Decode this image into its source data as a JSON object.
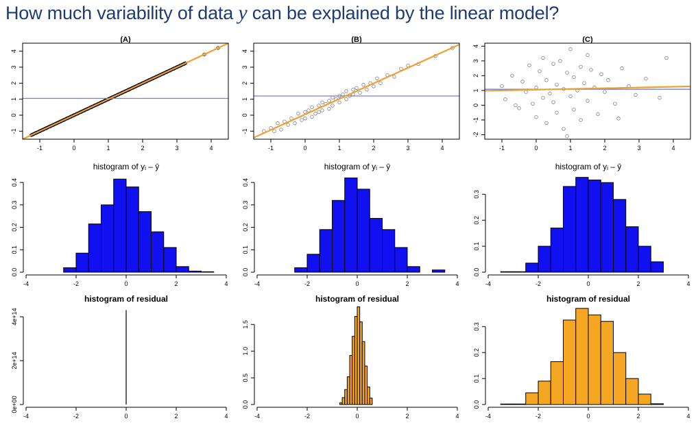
{
  "title": {
    "prefix": "How much variability of data ",
    "variable": "y",
    "suffix": " can be explained by the linear model?"
  },
  "colors": {
    "title": "#1f3b73",
    "fit_line": "#f0a030",
    "mean_line": "#6f7fe6",
    "blue_bars": "#1010f0",
    "orange_bars": "#f5a623",
    "points": "#000000"
  },
  "chart_data": [
    {
      "type": "scatter",
      "panel": "A",
      "title": "(A)",
      "xlim": [
        -1.5,
        4.5
      ],
      "ylim": [
        -1.5,
        4.5
      ],
      "xticks": [
        "-1",
        "0",
        "1",
        "2",
        "3",
        "4"
      ],
      "yticks": [
        "-1",
        "0",
        "1",
        "2",
        "3",
        "4"
      ],
      "mean_y": 1.05,
      "fit_line": {
        "intercept": 0,
        "slope": 1
      },
      "points": {
        "x": [
          -1.2,
          -1.1,
          -1.0,
          -0.9,
          -0.8,
          -0.7,
          -0.6,
          -0.5,
          -0.4,
          -0.3,
          -0.2,
          -0.1,
          0.0,
          0.1,
          0.2,
          0.3,
          0.4,
          0.5,
          0.6,
          0.7,
          0.8,
          0.9,
          1.0,
          1.1,
          1.2,
          1.3,
          1.4,
          1.5,
          1.6,
          1.7,
          1.8,
          1.9,
          2.0,
          2.1,
          2.2,
          2.3,
          2.4,
          2.5,
          2.6,
          2.7,
          2.8,
          2.9,
          3.0,
          3.1,
          3.2,
          3.8,
          4.2
        ],
        "y": [
          -1.2,
          -1.1,
          -1.0,
          -0.9,
          -0.8,
          -0.7,
          -0.6,
          -0.5,
          -0.4,
          -0.3,
          -0.2,
          -0.1,
          0.0,
          0.1,
          0.2,
          0.3,
          0.4,
          0.5,
          0.6,
          0.7,
          0.8,
          0.9,
          1.0,
          1.1,
          1.2,
          1.3,
          1.4,
          1.5,
          1.6,
          1.7,
          1.8,
          1.9,
          2.0,
          2.1,
          2.2,
          2.3,
          2.4,
          2.5,
          2.6,
          2.7,
          2.8,
          2.9,
          3.0,
          3.1,
          3.2,
          3.8,
          4.2
        ]
      }
    },
    {
      "type": "scatter",
      "panel": "B",
      "title": "(B)",
      "xlim": [
        -1.5,
        4.5
      ],
      "ylim": [
        -1.5,
        4.5
      ],
      "xticks": [
        "-1",
        "0",
        "1",
        "2",
        "3",
        "4"
      ],
      "yticks": [
        "-1",
        "0",
        "1",
        "2",
        "3",
        "4"
      ],
      "mean_y": 1.2,
      "fit_line": {
        "intercept": 0.05,
        "slope": 0.97
      },
      "points": {
        "x": [
          -1.2,
          -1.0,
          -0.9,
          -0.8,
          -0.7,
          -0.6,
          -0.5,
          -0.4,
          -0.3,
          -0.2,
          -0.1,
          0.0,
          0.0,
          0.1,
          0.2,
          0.2,
          0.3,
          0.4,
          0.4,
          0.5,
          0.5,
          0.6,
          0.7,
          0.7,
          0.8,
          0.8,
          0.9,
          1.0,
          1.0,
          1.1,
          1.2,
          1.2,
          1.3,
          1.4,
          1.4,
          1.5,
          1.6,
          1.7,
          1.8,
          1.9,
          2.0,
          2.1,
          2.2,
          2.4,
          2.6,
          2.8,
          3.0,
          3.3,
          3.8,
          4.3
        ],
        "y": [
          -1.0,
          -0.8,
          -1.0,
          -0.5,
          -0.9,
          -0.4,
          -0.6,
          -0.2,
          -0.5,
          0.1,
          -0.3,
          0.2,
          -0.2,
          0.3,
          -0.1,
          0.5,
          0.1,
          0.6,
          0.2,
          0.8,
          0.3,
          0.7,
          0.9,
          0.4,
          1.1,
          0.6,
          1.0,
          1.2,
          0.8,
          1.3,
          1.0,
          1.5,
          1.2,
          1.6,
          1.3,
          1.7,
          1.4,
          1.9,
          1.6,
          2.0,
          1.8,
          2.3,
          2.0,
          2.5,
          2.4,
          2.9,
          3.1,
          3.2,
          3.7,
          4.2
        ]
      }
    },
    {
      "type": "scatter",
      "panel": "C",
      "title": "(C)",
      "xlim": [
        -1.5,
        4.5
      ],
      "ylim": [
        -2.3,
        4.2
      ],
      "xticks": [
        "-1",
        "0",
        "1",
        "2",
        "3",
        "4"
      ],
      "yticks": [
        "-2",
        "-1",
        "0",
        "1",
        "2",
        "3",
        "4"
      ],
      "mean_y": 1.08,
      "fit_line": {
        "intercept": 1.05,
        "slope": 0.05
      },
      "points": {
        "x": [
          -1.0,
          -0.9,
          -0.7,
          -0.5,
          -0.4,
          -0.3,
          -0.2,
          -0.1,
          0.0,
          0.0,
          0.1,
          0.2,
          0.2,
          0.3,
          0.3,
          0.4,
          0.5,
          0.5,
          0.6,
          0.6,
          0.7,
          0.8,
          0.8,
          0.9,
          1.0,
          1.0,
          1.1,
          1.1,
          1.2,
          1.3,
          1.3,
          1.4,
          1.5,
          1.6,
          1.7,
          1.8,
          1.9,
          2.0,
          2.1,
          2.3,
          2.5,
          2.7,
          2.9,
          3.2,
          3.6,
          3.8,
          0.9,
          1.5,
          -0.6,
          2.4
        ],
        "y": [
          1.3,
          0.4,
          2.0,
          -0.2,
          1.6,
          0.9,
          2.7,
          0.1,
          1.2,
          -0.8,
          2.3,
          0.5,
          3.2,
          1.7,
          -1.2,
          0.8,
          2.8,
          0.2,
          1.4,
          -0.5,
          3.0,
          1.1,
          -1.6,
          2.2,
          0.6,
          3.8,
          1.9,
          -0.3,
          1.0,
          2.6,
          -1.0,
          1.5,
          0.3,
          2.4,
          1.2,
          -0.6,
          2.1,
          0.9,
          1.7,
          0.1,
          2.5,
          1.3,
          0.7,
          1.8,
          0.5,
          3.2,
          -2.1,
          3.4,
          0.0,
          -0.9
        ]
      }
    },
    {
      "type": "histogram",
      "panel": "A-response",
      "title": "histogram of yᵢ – ȳ",
      "bar_color": "blue_bars",
      "xlim": [
        -4,
        4
      ],
      "ylim": [
        0,
        0.44
      ],
      "xticks": [
        "-4",
        "-2",
        "0",
        "2",
        "4"
      ],
      "yticks": [
        "0.0",
        "0.1",
        "0.2",
        "0.3",
        "0.4"
      ],
      "bin_edges": [
        -2.5,
        -2.0,
        -1.5,
        -1.0,
        -0.5,
        0.0,
        0.5,
        1.0,
        1.5,
        2.0,
        2.5,
        3.0,
        3.5
      ],
      "densities": [
        0.02,
        0.085,
        0.215,
        0.3,
        0.415,
        0.38,
        0.27,
        0.18,
        0.11,
        0.025,
        0.005,
        0.002
      ]
    },
    {
      "type": "histogram",
      "panel": "B-response",
      "title": "histogram of yᵢ – ȳ",
      "bar_color": "blue_bars",
      "xlim": [
        -4,
        4
      ],
      "ylim": [
        0,
        0.44
      ],
      "xticks": [
        "-4",
        "-2",
        "0",
        "2",
        "4"
      ],
      "yticks": [
        "0.0",
        "0.1",
        "0.2",
        "0.3",
        "0.4"
      ],
      "bin_edges": [
        -2.5,
        -2.0,
        -1.5,
        -1.0,
        -0.5,
        0.0,
        0.5,
        1.0,
        1.5,
        2.0,
        2.5,
        3.0,
        3.5
      ],
      "densities": [
        0.02,
        0.08,
        0.19,
        0.32,
        0.42,
        0.37,
        0.24,
        0.19,
        0.11,
        0.025,
        0.0,
        0.01
      ]
    },
    {
      "type": "histogram",
      "panel": "C-response",
      "title": "histogram of yᵢ – ȳ",
      "bar_color": "blue_bars",
      "xlim": [
        -4,
        4
      ],
      "ylim": [
        0,
        0.38
      ],
      "xticks": [
        "-4",
        "-2",
        "0",
        "2",
        "4"
      ],
      "yticks": [
        "0.0",
        "0.1",
        "0.2",
        "0.3"
      ],
      "bin_edges": [
        -3.5,
        -3.0,
        -2.5,
        -2.0,
        -1.5,
        -1.0,
        -0.5,
        0.0,
        0.5,
        1.0,
        1.5,
        2.0,
        2.5,
        3.0
      ],
      "densities": [
        0.002,
        0.002,
        0.035,
        0.1,
        0.17,
        0.33,
        0.365,
        0.355,
        0.345,
        0.28,
        0.175,
        0.1,
        0.04,
        0.003
      ]
    },
    {
      "type": "histogram",
      "panel": "A-residual",
      "title": "histogram of residual",
      "bar_color": "orange_bars",
      "xlim": [
        -4,
        4
      ],
      "ylim": [
        0,
        450000000000000.0
      ],
      "xticks": [
        "-4",
        "-2",
        "0",
        "2",
        "4"
      ],
      "yticks": [
        "0e+00",
        "2e+14",
        "4e+14"
      ],
      "yticks_values": [
        0,
        200000000000000.0,
        400000000000000.0
      ],
      "bin_edges": [
        -0.005,
        0.005
      ],
      "densities": [
        430000000000000.0
      ]
    },
    {
      "type": "histogram",
      "panel": "B-residual",
      "title": "histogram of residual",
      "bar_color": "orange_bars",
      "xlim": [
        -4,
        4
      ],
      "ylim": [
        0,
        1.85
      ],
      "xticks": [
        "-4",
        "-2",
        "0",
        "2",
        "4"
      ],
      "yticks": [
        "0.0",
        "0.5",
        "1.0",
        "1.5"
      ],
      "bin_edges": [
        -0.7,
        -0.6,
        -0.5,
        -0.4,
        -0.3,
        -0.2,
        -0.1,
        0.0,
        0.1,
        0.2,
        0.3,
        0.4,
        0.5,
        0.6
      ],
      "densities": [
        0.03,
        0.13,
        0.28,
        0.52,
        0.92,
        1.28,
        1.65,
        1.83,
        1.55,
        1.18,
        0.72,
        0.33,
        0.12,
        0.02
      ]
    },
    {
      "type": "histogram",
      "panel": "C-residual",
      "title": "histogram of residual",
      "bar_color": "orange_bars",
      "xlim": [
        -4,
        4
      ],
      "ylim": [
        0,
        0.38
      ],
      "xticks": [
        "-4",
        "-2",
        "0",
        "2",
        "4"
      ],
      "yticks": [
        "0.0",
        "0.1",
        "0.2",
        "0.3"
      ],
      "bin_edges": [
        -3.5,
        -3.0,
        -2.5,
        -2.0,
        -1.5,
        -1.0,
        -0.5,
        0.0,
        0.5,
        1.0,
        1.5,
        2.0,
        2.5,
        3.0
      ],
      "densities": [
        0.002,
        0.002,
        0.045,
        0.09,
        0.165,
        0.325,
        0.37,
        0.345,
        0.32,
        0.2,
        0.1,
        0.04,
        0.003,
        0.002
      ]
    }
  ]
}
